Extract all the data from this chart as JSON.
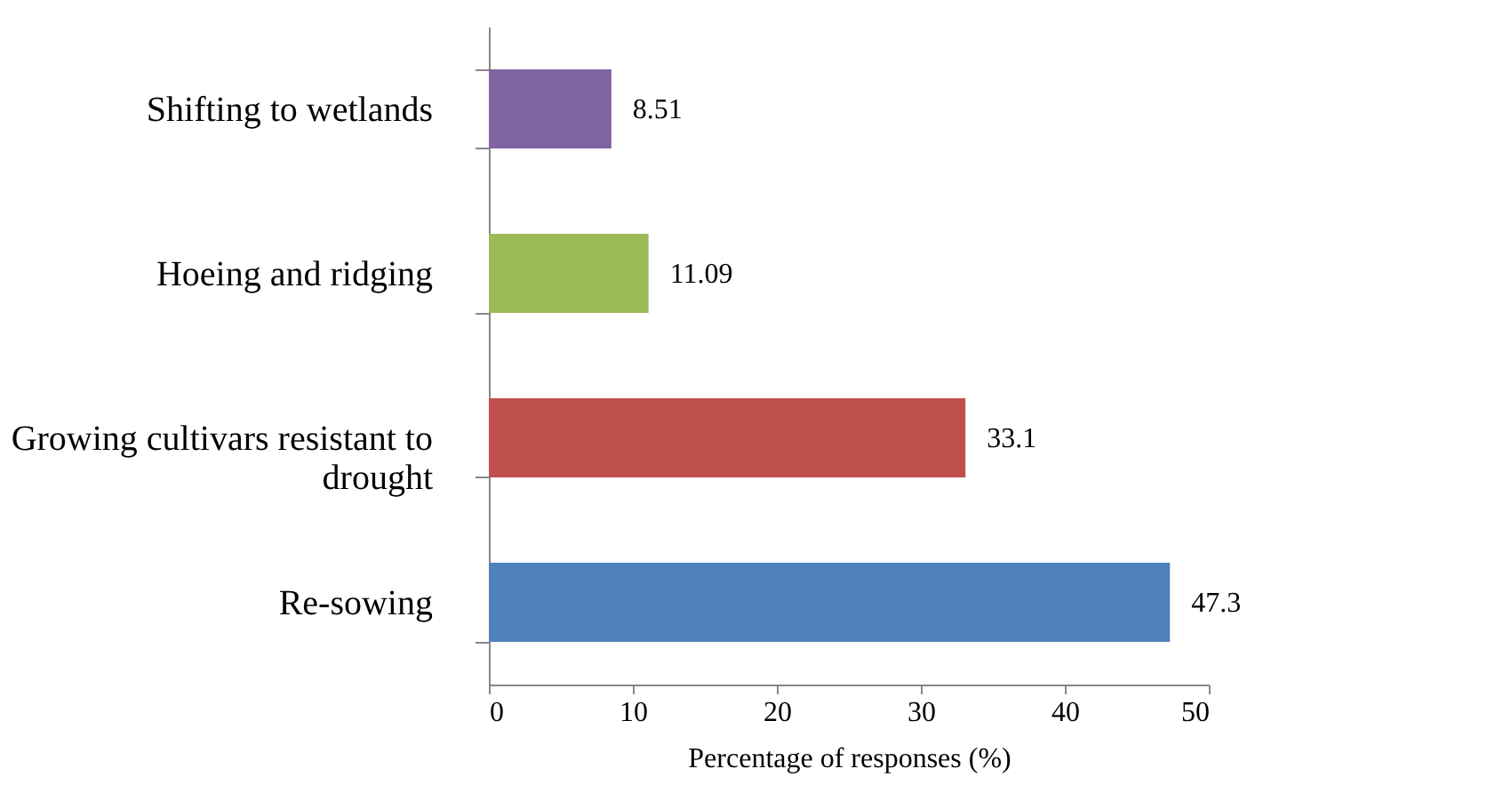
{
  "chart_data": {
    "type": "bar",
    "orientation": "horizontal",
    "xlabel": "Percentage of responses (%)",
    "categories": [
      "Shifting to wetlands",
      "Hoeing and ridging",
      "Growing cultivars resistant to drought",
      "Re-sowing"
    ],
    "values": [
      8.51,
      11.09,
      33.1,
      47.3
    ],
    "colors": [
      "#8064a2",
      "#9bbb59",
      "#c0504d",
      "#4f81bd"
    ],
    "xlim": [
      0,
      50
    ],
    "xticks": [
      0,
      10,
      20,
      30,
      40,
      50
    ],
    "grid": false,
    "data_labels": true
  }
}
